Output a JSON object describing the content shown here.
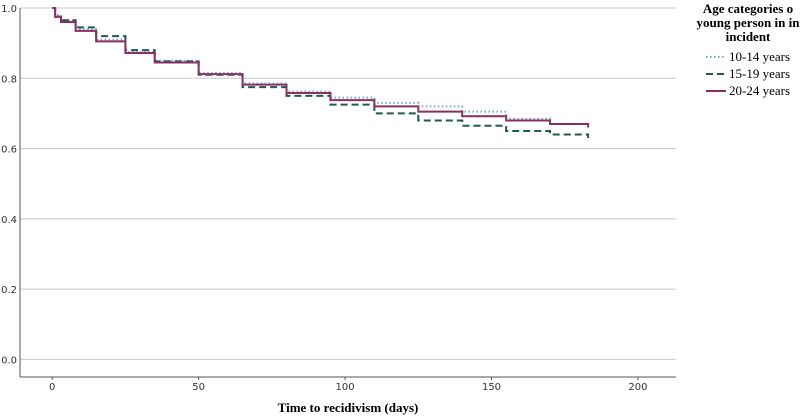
{
  "chart_data": {
    "type": "line",
    "xlabel": "Time to recidivism (days)",
    "ylabel": "",
    "xlim": [
      -11,
      213
    ],
    "ylim": [
      -0.05,
      1.0
    ],
    "xticks": [
      "0",
      "50",
      "100",
      "150",
      "200"
    ],
    "yticks": [
      "0.0",
      "0.2",
      "0.4",
      "0.6",
      "0.8",
      "1.0"
    ],
    "grid": "horizontal",
    "legend": {
      "title_lines": [
        "Age categories o",
        "young person in in",
        "incident"
      ],
      "placement": "right"
    },
    "series": [
      {
        "name": "10-14 years",
        "color": "#6fa8c8",
        "dash": "dotted",
        "x": [
          0,
          1,
          3,
          8,
          15,
          25,
          35,
          50,
          65,
          80,
          95,
          110,
          125,
          140,
          155,
          170,
          183
        ],
        "y": [
          1.0,
          0.98,
          0.965,
          0.94,
          0.91,
          0.875,
          0.85,
          0.815,
          0.785,
          0.762,
          0.745,
          0.73,
          0.72,
          0.705,
          0.685,
          0.67,
          0.66
        ]
      },
      {
        "name": "15-19 years",
        "color": "#1e5a4e",
        "dash": "dashed",
        "x": [
          0,
          1,
          3,
          8,
          15,
          25,
          35,
          50,
          65,
          80,
          95,
          110,
          125,
          140,
          155,
          170,
          183
        ],
        "y": [
          1.0,
          0.975,
          0.965,
          0.945,
          0.92,
          0.88,
          0.848,
          0.81,
          0.775,
          0.75,
          0.725,
          0.7,
          0.68,
          0.665,
          0.65,
          0.64,
          0.63
        ]
      },
      {
        "name": "20-24 years",
        "color": "#8e2f64",
        "dash": "solid",
        "x": [
          0,
          1,
          3,
          8,
          15,
          25,
          35,
          50,
          65,
          80,
          95,
          110,
          125,
          140,
          155,
          170,
          183
        ],
        "y": [
          1.0,
          0.975,
          0.96,
          0.935,
          0.905,
          0.872,
          0.845,
          0.812,
          0.782,
          0.758,
          0.738,
          0.72,
          0.705,
          0.692,
          0.68,
          0.67,
          0.66
        ]
      }
    ]
  }
}
